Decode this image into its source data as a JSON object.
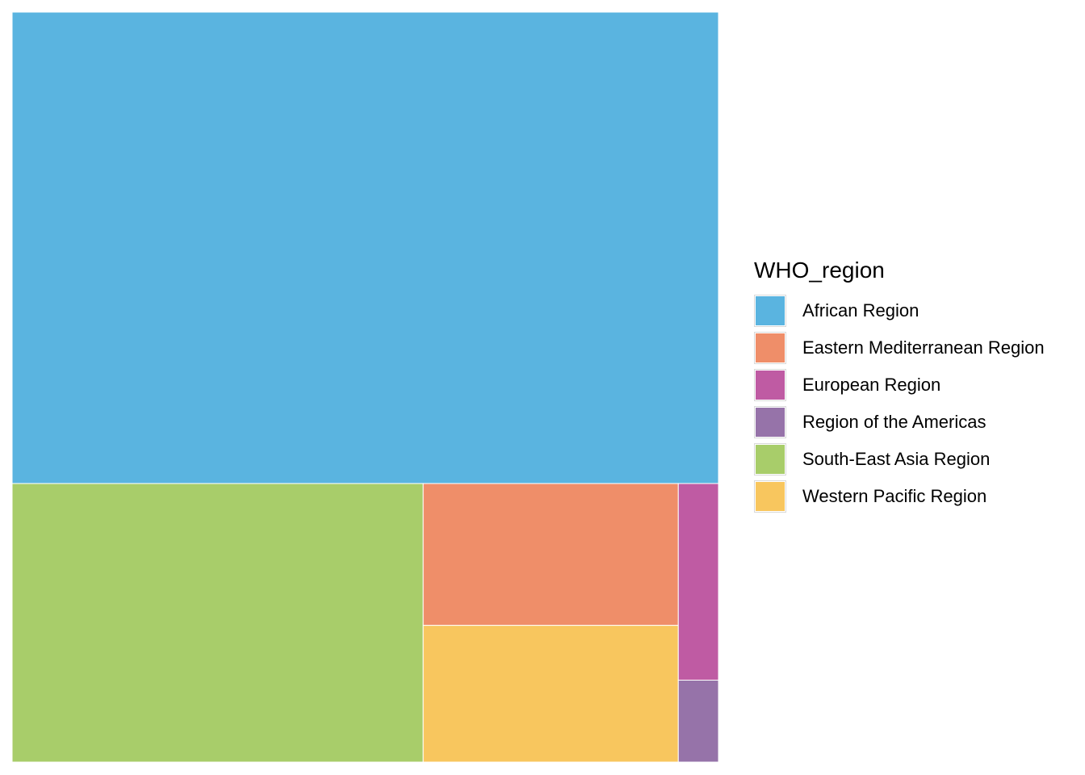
{
  "chart_data": {
    "type": "treemap",
    "title": "",
    "legend": {
      "title": "WHO_region",
      "placement": "right"
    },
    "series": [
      {
        "name": "African Region",
        "value": 50.6,
        "color": "#5AB4E0"
      },
      {
        "name": "Eastern Mediterranean Region",
        "value": 5.5,
        "color": "#EF8E69"
      },
      {
        "name": "European Region",
        "value": 1.2,
        "color": "#BF5BA3"
      },
      {
        "name": "Region of the Americas",
        "value": 0.5,
        "color": "#9673A9"
      },
      {
        "name": "South-East Asia Region",
        "value": 17.4,
        "color": "#A8CD6A"
      },
      {
        "name": "Western Pacific Region",
        "value": 5.3,
        "color": "#F8C65E"
      }
    ]
  }
}
